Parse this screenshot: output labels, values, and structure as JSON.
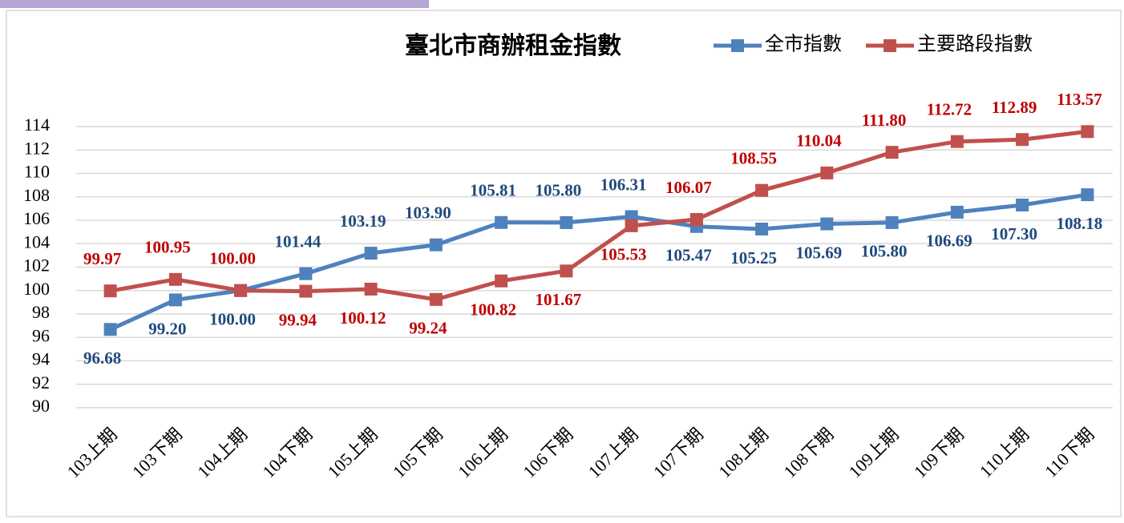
{
  "chart_data": {
    "type": "line",
    "title": "臺北市商辦租金指數",
    "categories": [
      "103上期",
      "103下期",
      "104上期",
      "104下期",
      "105上期",
      "105下期",
      "106上期",
      "106下期",
      "107上期",
      "107下期",
      "108上期",
      "108下期",
      "109上期",
      "109下期",
      "110上期",
      "110下期"
    ],
    "series": [
      {
        "name": "全市指數",
        "color": "#4f81bd",
        "label_color": "#1f497d",
        "values": [
          96.68,
          99.2,
          100,
          101.44,
          103.19,
          103.9,
          105.81,
          105.8,
          106.31,
          105.47,
          105.25,
          105.69,
          105.8,
          106.69,
          107.3,
          108.18
        ],
        "value_labels": [
          "96.68",
          "99.20",
          "100.00",
          "101.44",
          "103.19",
          "103.90",
          "105.81",
          "105.80",
          "106.31",
          "105.47",
          "105.25",
          "105.69",
          "105.80",
          "106.69",
          "107.30",
          "108.18"
        ]
      },
      {
        "name": "主要路段指數",
        "color": "#c0504d",
        "label_color": "#c00000",
        "values": [
          99.97,
          100.95,
          100,
          99.94,
          100.12,
          99.24,
          100.82,
          101.67,
          105.53,
          106.07,
          108.55,
          110.04,
          111.8,
          112.72,
          112.89,
          113.57
        ],
        "value_labels": [
          "99.97",
          "100.95",
          "100.00",
          "99.94",
          "100.12",
          "99.24",
          "100.82",
          "101.67",
          "105.53",
          "106.07",
          "108.55",
          "110.04",
          "111.80",
          "112.72",
          "112.89",
          "113.57"
        ]
      }
    ],
    "ylim": [
      90,
      114
    ],
    "yticks": [
      90,
      92,
      94,
      96,
      98,
      100,
      102,
      104,
      106,
      108,
      110,
      112,
      114
    ],
    "grid": true,
    "legend": "top-right"
  }
}
